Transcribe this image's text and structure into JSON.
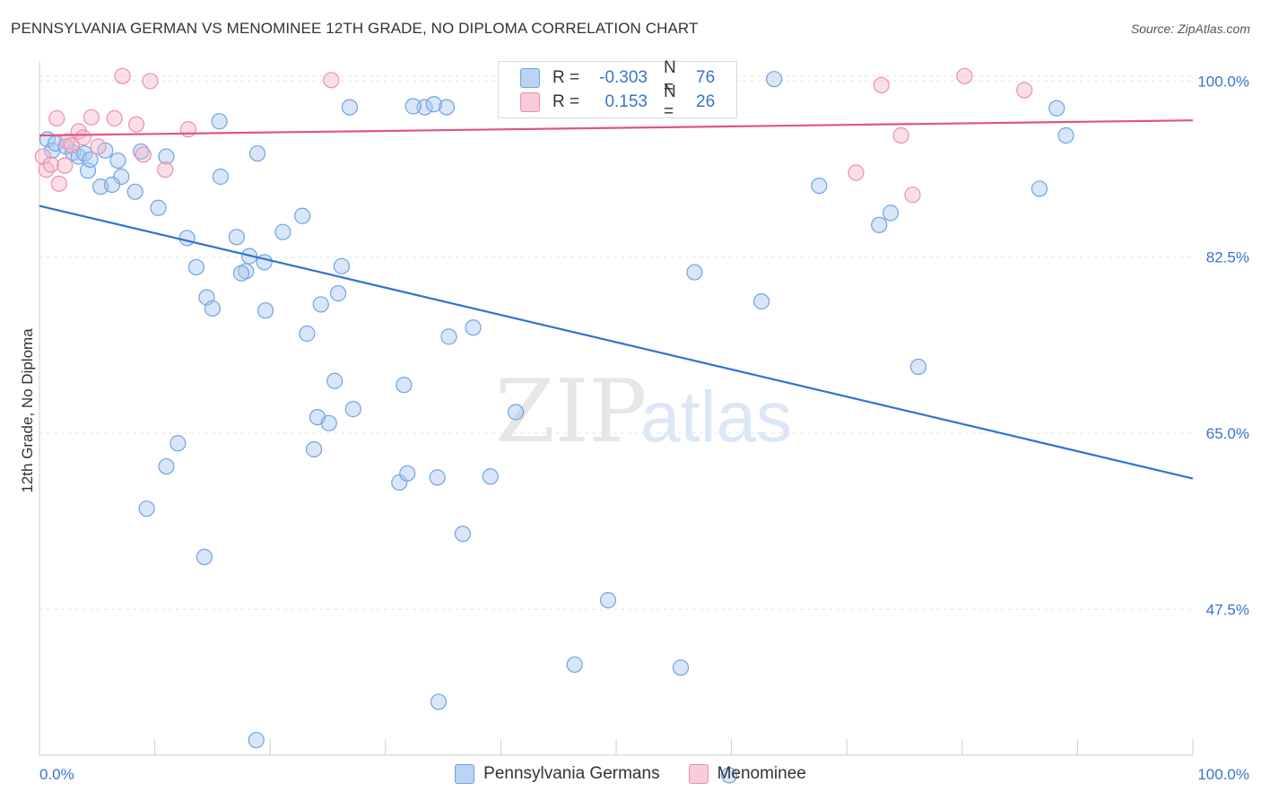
{
  "header": {
    "title": "PENNSYLVANIA GERMAN VS MENOMINEE 12TH GRADE, NO DIPLOMA CORRELATION CHART",
    "source": "Source: ZipAtlas.com"
  },
  "watermark": {
    "zip": "ZIP",
    "atlas": "atlas"
  },
  "legend": {
    "rows": [
      {
        "r_label": "R =",
        "r_value": "-0.303",
        "n_label": "N =",
        "n_value": "76",
        "color": "#a9c8f0"
      },
      {
        "r_label": "R =",
        "r_value": "0.153",
        "n_label": "N =",
        "n_value": "26",
        "color": "#f5b8cb"
      }
    ]
  },
  "bottom_legend": {
    "items": [
      {
        "label": "Pennsylvania Germans",
        "color": "#a9c8f0"
      },
      {
        "label": "Menominee",
        "color": "#f5b8cb"
      }
    ]
  },
  "chart_data": {
    "type": "scatter",
    "title": "PENNSYLVANIA GERMAN VS MENOMINEE 12TH GRADE, NO DIPLOMA CORRELATION CHART",
    "xlabel": "",
    "ylabel": "12th Grade, No Diploma",
    "xlim": [
      0,
      100
    ],
    "ylim": [
      33,
      102
    ],
    "x_tick_labels": [
      "0.0%",
      "100.0%"
    ],
    "y_ticks": [
      100,
      82.5,
      65,
      47.5
    ],
    "y_tick_labels": [
      "100.0%",
      "82.5%",
      "65.0%",
      "47.5%"
    ],
    "grid": true,
    "legend_position": "top-center",
    "series": [
      {
        "name": "Pennsylvania Germans",
        "color": "#6fa3e6",
        "fill": "#a9c8f0",
        "trend_color": "#2f74d0",
        "trend": {
          "x": [
            0,
            100
          ],
          "y": [
            87.6,
            60.5
          ]
        },
        "points": [
          [
            0.7,
            94.2
          ],
          [
            1.1,
            93.1
          ],
          [
            1.4,
            93.8
          ],
          [
            2.3,
            93.5
          ],
          [
            2.9,
            92.9
          ],
          [
            3.4,
            92.5
          ],
          [
            3.9,
            92.8
          ],
          [
            4.2,
            91.1
          ],
          [
            4.4,
            92.2
          ],
          [
            5.7,
            93.1
          ],
          [
            6.8,
            92.1
          ],
          [
            5.3,
            89.5
          ],
          [
            7.1,
            90.5
          ],
          [
            6.3,
            89.7
          ],
          [
            8.3,
            89.0
          ],
          [
            8.8,
            93.0
          ],
          [
            10.3,
            87.4
          ],
          [
            11.0,
            92.5
          ],
          [
            12.8,
            84.4
          ],
          [
            13.6,
            81.5
          ],
          [
            15.7,
            90.5
          ],
          [
            14.5,
            78.5
          ],
          [
            15.6,
            96.0
          ],
          [
            17.1,
            84.5
          ],
          [
            17.9,
            81.1
          ],
          [
            15.0,
            77.4
          ],
          [
            18.2,
            82.6
          ],
          [
            17.5,
            80.9
          ],
          [
            19.5,
            82.0
          ],
          [
            18.9,
            92.8
          ],
          [
            19.6,
            77.2
          ],
          [
            18.8,
            34.5
          ],
          [
            21.1,
            85.0
          ],
          [
            22.8,
            86.6
          ],
          [
            23.2,
            74.9
          ],
          [
            24.1,
            66.6
          ],
          [
            24.4,
            77.8
          ],
          [
            25.9,
            78.9
          ],
          [
            26.2,
            81.6
          ],
          [
            26.9,
            97.4
          ],
          [
            25.6,
            70.2
          ],
          [
            27.2,
            67.4
          ],
          [
            25.1,
            66.0
          ],
          [
            23.8,
            63.4
          ],
          [
            12.0,
            64.0
          ],
          [
            11.0,
            61.7
          ],
          [
            9.3,
            57.5
          ],
          [
            14.3,
            52.7
          ],
          [
            31.2,
            60.1
          ],
          [
            31.9,
            61.0
          ],
          [
            31.6,
            69.8
          ],
          [
            34.5,
            60.6
          ],
          [
            35.5,
            74.6
          ],
          [
            36.7,
            55.0
          ],
          [
            34.6,
            38.3
          ],
          [
            39.1,
            60.7
          ],
          [
            37.6,
            75.5
          ],
          [
            41.3,
            67.1
          ],
          [
            46.4,
            42.0
          ],
          [
            49.3,
            48.4
          ],
          [
            55.6,
            41.7
          ],
          [
            59.8,
            31.0
          ],
          [
            62.6,
            78.1
          ],
          [
            73.8,
            86.9
          ],
          [
            72.8,
            85.7
          ],
          [
            76.2,
            71.6
          ],
          [
            89.0,
            94.6
          ],
          [
            88.2,
            97.3
          ],
          [
            33.4,
            97.4
          ],
          [
            32.4,
            97.5
          ],
          [
            35.3,
            97.4
          ],
          [
            34.2,
            97.7
          ],
          [
            67.6,
            89.6
          ],
          [
            86.7,
            89.3
          ],
          [
            56.8,
            81.0
          ],
          [
            63.7,
            100.2
          ]
        ]
      },
      {
        "name": "Menominee",
        "color": "#ec8fae",
        "fill": "#f5b8cb",
        "trend_color": "#e0567f",
        "trend": {
          "x": [
            0,
            100
          ],
          "y": [
            94.6,
            96.1
          ]
        },
        "points": [
          [
            0.3,
            92.5
          ],
          [
            0.6,
            91.2
          ],
          [
            1.0,
            91.7
          ],
          [
            1.5,
            96.3
          ],
          [
            2.4,
            94.0
          ],
          [
            2.8,
            93.6
          ],
          [
            3.4,
            95.0
          ],
          [
            3.8,
            94.4
          ],
          [
            4.5,
            96.4
          ],
          [
            5.1,
            93.5
          ],
          [
            6.5,
            96.3
          ],
          [
            7.2,
            100.5
          ],
          [
            8.4,
            95.7
          ],
          [
            9.0,
            92.7
          ],
          [
            9.6,
            100.0
          ],
          [
            10.9,
            91.2
          ],
          [
            12.9,
            95.2
          ],
          [
            25.3,
            100.1
          ],
          [
            70.8,
            90.9
          ],
          [
            73.0,
            99.6
          ],
          [
            74.7,
            94.6
          ],
          [
            75.7,
            88.7
          ],
          [
            80.2,
            100.5
          ],
          [
            85.4,
            99.1
          ],
          [
            2.2,
            91.6
          ],
          [
            1.7,
            89.8
          ]
        ]
      }
    ]
  }
}
